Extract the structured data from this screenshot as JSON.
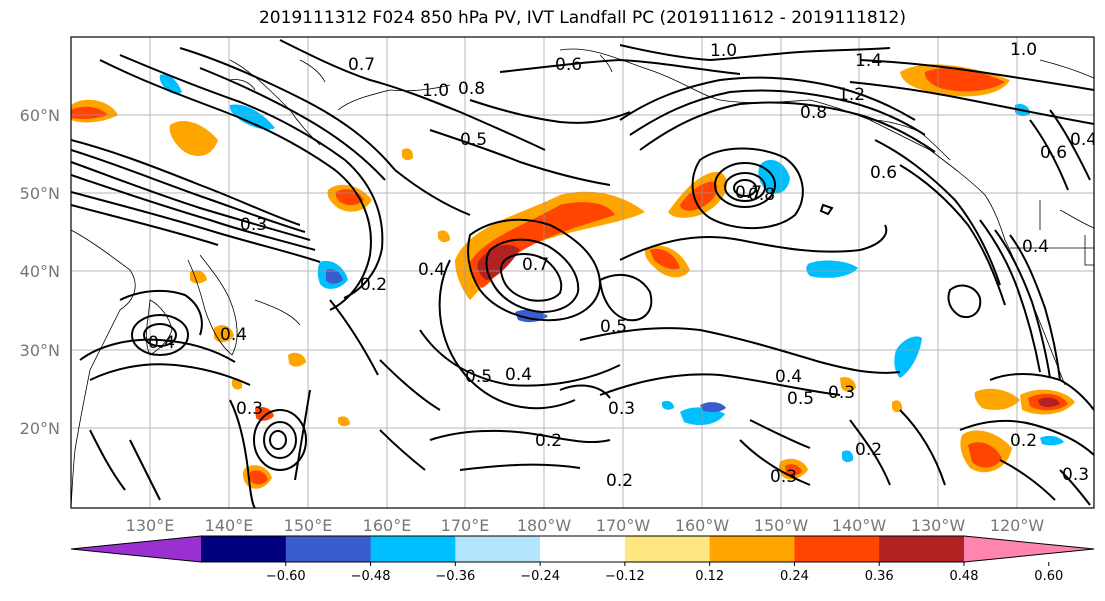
{
  "map": {
    "title": "2019111312 F024 850 hPa PV, IVT Landfall PC (2019111612 - 2019111812)",
    "lat_ticks": [
      "60°N",
      "50°N",
      "40°N",
      "30°N",
      "20°N"
    ],
    "lon_ticks": [
      "130°E",
      "140°E",
      "150°E",
      "160°E",
      "170°E",
      "180°W",
      "170°W",
      "160°W",
      "150°W",
      "140°W",
      "130°W",
      "120°W"
    ],
    "contour_labels": [
      {
        "text": "0.7"
      },
      {
        "text": "1.0"
      },
      {
        "text": "0.8"
      },
      {
        "text": "1.4"
      },
      {
        "text": "1.2"
      },
      {
        "text": "1.0"
      },
      {
        "text": "0.8"
      },
      {
        "text": "0.7"
      },
      {
        "text": "0.5"
      },
      {
        "text": "0.4"
      },
      {
        "text": "0.7"
      },
      {
        "text": "0.5"
      },
      {
        "text": "0.5"
      },
      {
        "text": "0.4"
      },
      {
        "text": "0.3"
      },
      {
        "text": "0.2"
      },
      {
        "text": "0.2"
      },
      {
        "text": "0.4"
      },
      {
        "text": "0.5"
      },
      {
        "text": "0.3"
      },
      {
        "text": "0.3"
      },
      {
        "text": "0.2"
      },
      {
        "text": "0.2"
      },
      {
        "text": "0.3"
      },
      {
        "text": "0.4"
      },
      {
        "text": "0.4"
      },
      {
        "text": "0.3"
      },
      {
        "text": "0.2"
      },
      {
        "text": "0.3"
      },
      {
        "text": "0.4"
      },
      {
        "text": "0.8"
      },
      {
        "text": "0.6"
      },
      {
        "text": "0.6"
      },
      {
        "text": "0.4"
      },
      {
        "text": "1.0"
      },
      {
        "text": "0.6"
      }
    ]
  },
  "colorbar": {
    "ticks": [
      "−0.60",
      "−0.48",
      "−0.36",
      "−0.24",
      "−0.12",
      "0.12",
      "0.24",
      "0.36",
      "0.48",
      "0.60"
    ],
    "colors": [
      "#9b30d0",
      "#00007f",
      "#3a5ccc",
      "#00bfff",
      "#b3e5fc",
      "#ffffff",
      "#ffe680",
      "#ffa500",
      "#ff4500",
      "#b22222",
      "#ff85b0"
    ],
    "contour_color": "#000000",
    "land_color": "#ffffff"
  }
}
